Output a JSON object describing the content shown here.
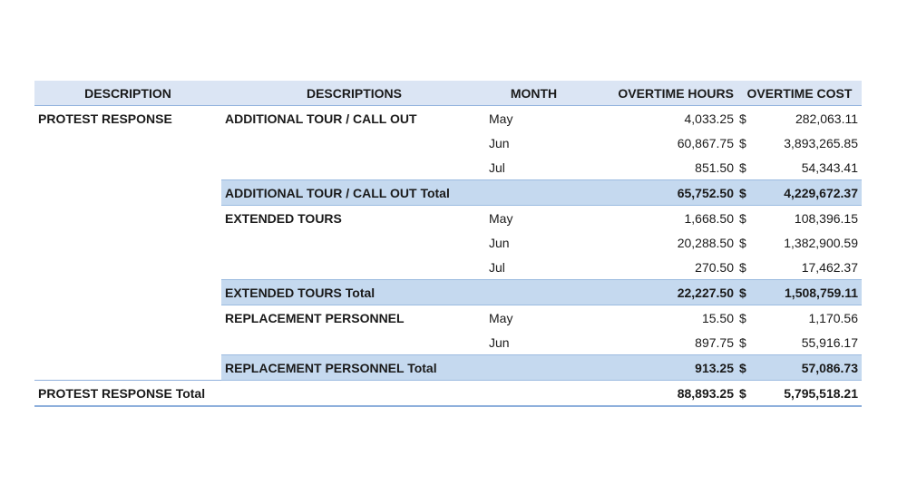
{
  "headers": {
    "description": "DESCRIPTION",
    "descriptions": "DESCRIPTIONS",
    "month": "MONTH",
    "overtime_hours": "OVERTIME HOURS",
    "overtime_cost": "OVERTIME COST"
  },
  "group": "PROTEST RESPONSE",
  "currency_symbol": "$",
  "sections": [
    {
      "name": "ADDITIONAL TOUR / CALL OUT",
      "rows": [
        {
          "month": "May",
          "hours": "4,033.25",
          "cost": "282,063.11"
        },
        {
          "month": "Jun",
          "hours": "60,867.75",
          "cost": "3,893,265.85"
        },
        {
          "month": "Jul",
          "hours": "851.50",
          "cost": "54,343.41"
        }
      ],
      "total_label": "ADDITIONAL TOUR / CALL OUT Total",
      "total_hours": "65,752.50",
      "total_cost": "4,229,672.37"
    },
    {
      "name": "EXTENDED TOURS",
      "rows": [
        {
          "month": "May",
          "hours": "1,668.50",
          "cost": "108,396.15"
        },
        {
          "month": "Jun",
          "hours": "20,288.50",
          "cost": "1,382,900.59"
        },
        {
          "month": "Jul",
          "hours": "270.50",
          "cost": "17,462.37"
        }
      ],
      "total_label": "EXTENDED TOURS Total",
      "total_hours": "22,227.50",
      "total_cost": "1,508,759.11"
    },
    {
      "name": "REPLACEMENT PERSONNEL",
      "rows": [
        {
          "month": "May",
          "hours": "15.50",
          "cost": "1,170.56"
        },
        {
          "month": "Jun",
          "hours": "897.75",
          "cost": "55,916.17"
        }
      ],
      "total_label": "REPLACEMENT PERSONNEL Total",
      "total_hours": "913.25",
      "total_cost": "57,086.73"
    }
  ],
  "grand_total": {
    "label": "PROTEST RESPONSE Total",
    "hours": "88,893.25",
    "cost": "5,795,518.21"
  }
}
